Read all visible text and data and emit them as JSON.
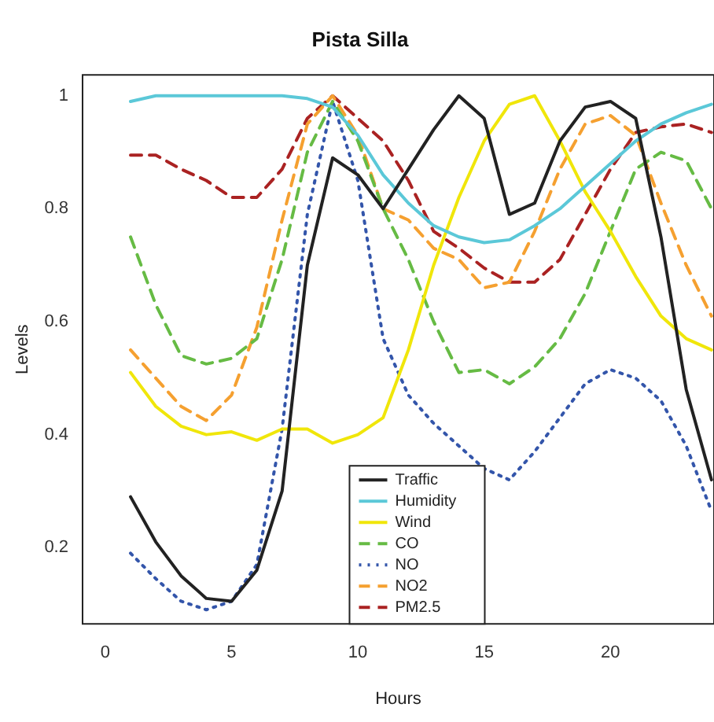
{
  "chart_data": {
    "type": "line",
    "title": "Pista Silla",
    "xlabel": "Hours",
    "ylabel": "Levels",
    "x": [
      1,
      2,
      3,
      4,
      5,
      6,
      7,
      8,
      9,
      10,
      11,
      12,
      13,
      14,
      15,
      16,
      17,
      18,
      19,
      20,
      21,
      22,
      23,
      24
    ],
    "xlim": [
      -0.9,
      24.1
    ],
    "xticks": [
      0,
      5,
      10,
      15,
      20
    ],
    "ylim": [
      0.065,
      1.037
    ],
    "yticks": [
      0.2,
      0.4,
      0.6,
      0.8,
      1.0
    ],
    "grid": false,
    "legend": "bottom",
    "marker": "none",
    "series": [
      {
        "name": "Traffic",
        "color": "#222222",
        "line_style": "solid",
        "values": [
          0.29,
          0.21,
          0.15,
          0.11,
          0.105,
          0.16,
          0.3,
          0.7,
          0.89,
          0.86,
          0.8,
          0.87,
          0.94,
          1.0,
          0.96,
          0.79,
          0.81,
          0.92,
          0.98,
          0.99,
          0.96,
          0.75,
          0.48,
          0.32
        ]
      },
      {
        "name": "Humidity",
        "color": "#5bc8d8",
        "line_style": "solid",
        "values": [
          0.99,
          1.0,
          1.0,
          1.0,
          1.0,
          1.0,
          1.0,
          0.995,
          0.98,
          0.93,
          0.86,
          0.81,
          0.77,
          0.75,
          0.74,
          0.745,
          0.77,
          0.8,
          0.84,
          0.88,
          0.92,
          0.95,
          0.97,
          0.985
        ]
      },
      {
        "name": "Wind",
        "color": "#f0e60a",
        "line_style": "solid",
        "values": [
          0.51,
          0.45,
          0.415,
          0.4,
          0.405,
          0.39,
          0.41,
          0.41,
          0.385,
          0.4,
          0.43,
          0.55,
          0.7,
          0.82,
          0.92,
          0.985,
          1.0,
          0.92,
          0.83,
          0.76,
          0.68,
          0.61,
          0.57,
          0.55
        ]
      },
      {
        "name": "CO",
        "color": "#66bb44",
        "line_style": "dashed",
        "values": [
          0.75,
          0.63,
          0.54,
          0.525,
          0.535,
          0.57,
          0.71,
          0.9,
          0.99,
          0.92,
          0.8,
          0.71,
          0.6,
          0.51,
          0.515,
          0.49,
          0.52,
          0.57,
          0.65,
          0.76,
          0.87,
          0.9,
          0.885,
          0.8
        ]
      },
      {
        "name": "NO",
        "color": "#3355aa",
        "line_style": "dotted",
        "values": [
          0.19,
          0.145,
          0.105,
          0.09,
          0.105,
          0.17,
          0.41,
          0.79,
          0.99,
          0.85,
          0.57,
          0.47,
          0.42,
          0.38,
          0.34,
          0.32,
          0.37,
          0.43,
          0.49,
          0.515,
          0.5,
          0.46,
          0.38,
          0.265
        ]
      },
      {
        "name": "NO2",
        "color": "#f5a030",
        "line_style": "dashed",
        "values": [
          0.55,
          0.5,
          0.45,
          0.425,
          0.47,
          0.59,
          0.78,
          0.95,
          1.0,
          0.93,
          0.8,
          0.78,
          0.73,
          0.71,
          0.66,
          0.67,
          0.76,
          0.87,
          0.95,
          0.965,
          0.93,
          0.81,
          0.7,
          0.61
        ]
      },
      {
        "name": "PM2.5",
        "color": "#aa2222",
        "line_style": "dashed",
        "values": [
          0.895,
          0.895,
          0.87,
          0.85,
          0.82,
          0.82,
          0.87,
          0.96,
          1.0,
          0.96,
          0.92,
          0.85,
          0.76,
          0.73,
          0.695,
          0.67,
          0.67,
          0.71,
          0.79,
          0.87,
          0.935,
          0.945,
          0.95,
          0.935
        ]
      }
    ]
  }
}
